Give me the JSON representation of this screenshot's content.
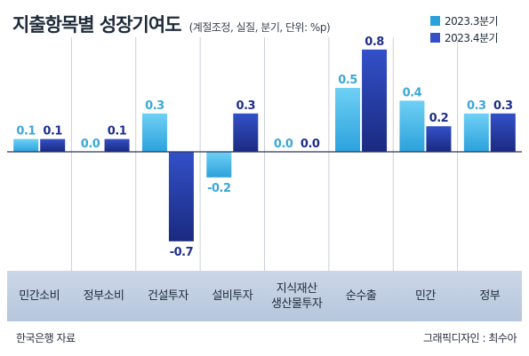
{
  "chart_data": {
    "type": "bar",
    "title": "지출항목별 성장기여도",
    "subtitle": "(계절조정, 실질, 분기, 단위: %p)",
    "categories": [
      "민간소비",
      "정부소비",
      "건설투자",
      "설비투자",
      "지식재산\n생산물투자",
      "순수출",
      "민간",
      "정부"
    ],
    "series": [
      {
        "name": "2023.3분기",
        "values": [
          0.1,
          0.0,
          0.3,
          -0.2,
          0.0,
          0.5,
          0.4,
          0.3
        ],
        "labels": [
          "0.1",
          "0.0",
          "0.3",
          "-0.2",
          "0.0",
          "0.5",
          "0.4",
          "0.3"
        ]
      },
      {
        "name": "2023.4분기",
        "values": [
          0.1,
          0.1,
          -0.7,
          0.3,
          0.0,
          0.8,
          0.2,
          0.3
        ],
        "labels": [
          "0.1",
          "0.1",
          "-0.7",
          "0.3",
          "0.0",
          "0.8",
          "0.2",
          "0.3"
        ]
      }
    ],
    "ylim": [
      -0.7,
      0.8
    ],
    "grid": false,
    "legend_position": "top-right",
    "colors": {
      "series1_top": "#6fd0f5",
      "series1_bottom": "#2ba1dc",
      "series2_top": "#3350c8",
      "series2_bottom": "#1a2a80",
      "label1": "#3aa8d8",
      "label2": "#1f2f8a",
      "zero_line": "#2a3560",
      "divider": "#c9cfd8"
    }
  },
  "footer": {
    "source": "한국은행 자료",
    "credit": "그래픽디자인 : 최수아"
  }
}
